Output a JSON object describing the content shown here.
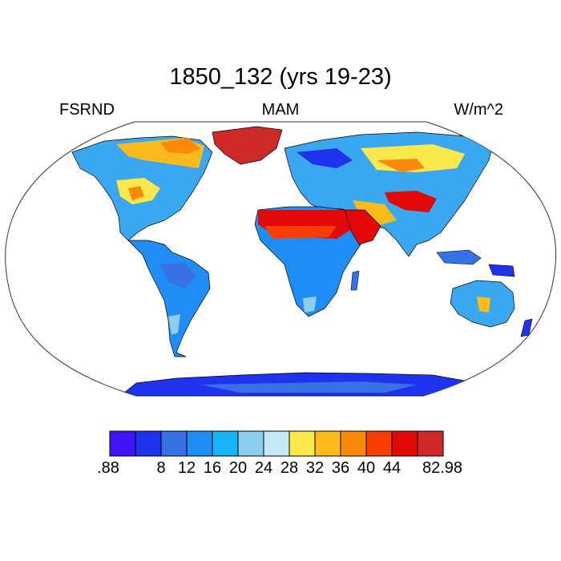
{
  "title": "1850_132 (yrs 19-23)",
  "left_label": "FSRND",
  "center_label": "MAM",
  "right_label": "W/m^2",
  "colorbar": {
    "colors": [
      "#3f14f7",
      "#1f32ee",
      "#3871e5",
      "#1f8df5",
      "#17b5f5",
      "#8dcdee",
      "#c6e9fa",
      "#fbe84d",
      "#fcbb1c",
      "#fb8a0c",
      "#fa3d05",
      "#e30808",
      "#ce2828"
    ],
    "tick_labels": [
      ".88",
      "8",
      "12",
      "16",
      "20",
      "24",
      "28",
      "32",
      "36",
      "40",
      "44",
      "82.98"
    ]
  },
  "chart_data": {
    "type": "heatmap",
    "title": "1850_132 (yrs 19-23)",
    "variable": "FSRND",
    "season": "MAM",
    "units": "W/m^2",
    "levels": [
      8,
      12,
      16,
      20,
      24,
      28,
      32,
      36,
      40,
      44
    ],
    "min": 0.88,
    "max": 82.98
  }
}
